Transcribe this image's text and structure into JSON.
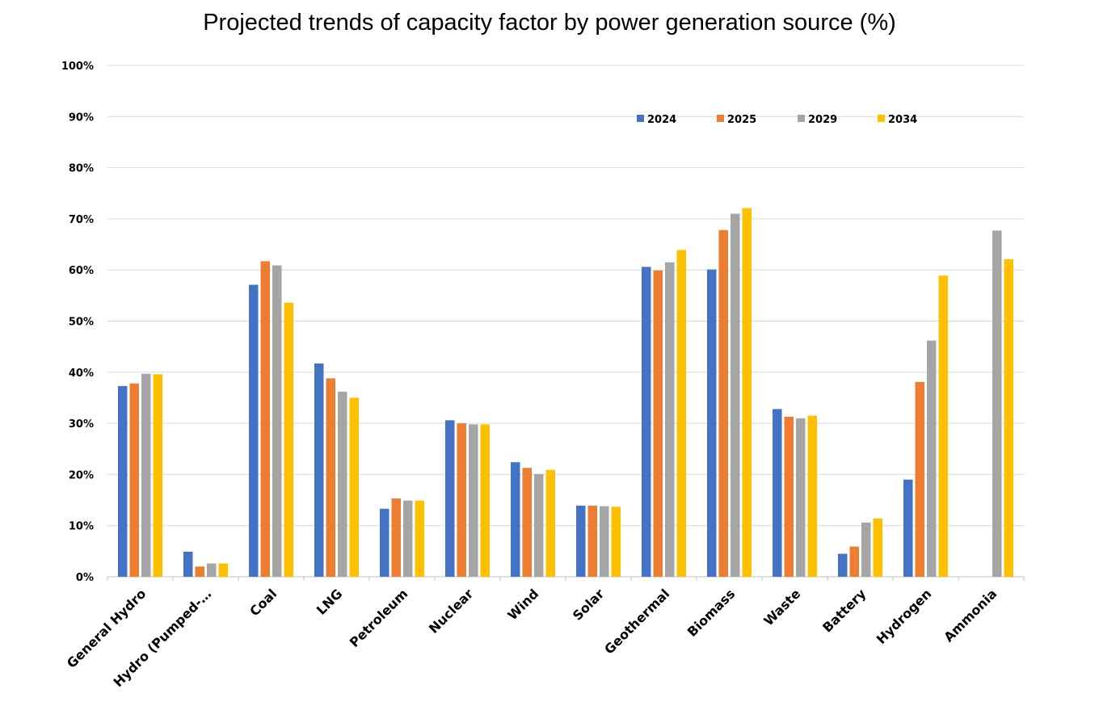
{
  "chart_data": {
    "type": "bar",
    "title": "Projected trends of capacity factor by power generation source (%)",
    "xlabel": "",
    "ylabel": "",
    "ylim": [
      0,
      100
    ],
    "yticks": [
      "0%",
      "10%",
      "20%",
      "30%",
      "40%",
      "50%",
      "60%",
      "70%",
      "80%",
      "90%",
      "100%"
    ],
    "grid": true,
    "legend_position": "top-right",
    "categories": [
      "General Hydro",
      "Hydro (Pumped-…",
      "Coal",
      "LNG",
      "Petroleum",
      "Nuclear",
      "Wind",
      "Solar",
      "Geothermal",
      "Biomass",
      "Waste",
      "Battery",
      "Hydrogen",
      "Ammonia"
    ],
    "series": [
      {
        "name": "2024",
        "color": "#4472c4",
        "values": [
          37.3,
          4.9,
          57.1,
          41.7,
          13.3,
          30.6,
          22.4,
          13.9,
          60.6,
          60.1,
          32.8,
          4.5,
          19.0,
          null
        ]
      },
      {
        "name": "2025",
        "color": "#ed7d31",
        "values": [
          37.8,
          2.0,
          61.7,
          38.8,
          15.3,
          30.0,
          21.3,
          13.9,
          59.9,
          67.8,
          31.3,
          5.9,
          38.1,
          null
        ]
      },
      {
        "name": "2029",
        "color": "#a5a5a5",
        "values": [
          39.7,
          2.6,
          60.9,
          36.2,
          14.9,
          29.8,
          20.1,
          13.8,
          61.5,
          71.0,
          31.0,
          10.6,
          46.2,
          67.7
        ]
      },
      {
        "name": "2034",
        "color": "#ffc000",
        "values": [
          39.6,
          2.6,
          53.6,
          35.0,
          14.9,
          29.8,
          20.9,
          13.7,
          63.9,
          72.1,
          31.5,
          11.4,
          58.9,
          62.1
        ]
      }
    ]
  }
}
